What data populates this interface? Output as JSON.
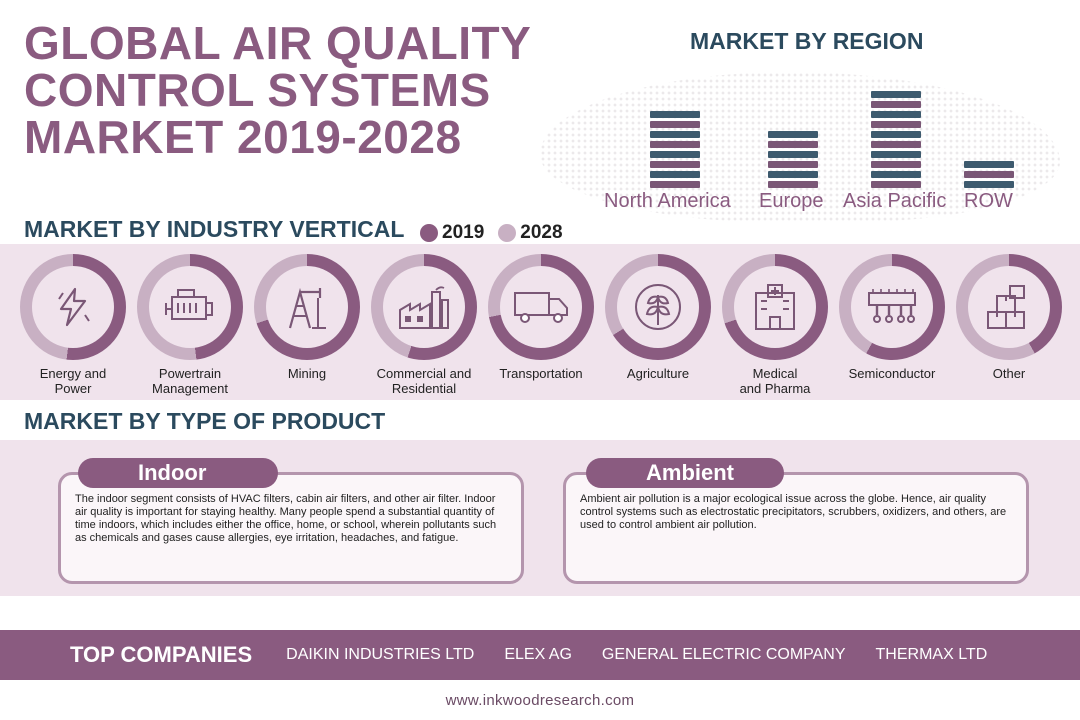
{
  "title": {
    "line1": "GLOBAL AIR QUALITY",
    "line2": "CONTROL SYSTEMS",
    "line3": "MARKET 2019-2028"
  },
  "region": {
    "heading": "MARKET BY REGION",
    "items": [
      {
        "label": "North America",
        "segments": 8
      },
      {
        "label": "Europe",
        "segments": 6
      },
      {
        "label": "Asia Pacific",
        "segments": 10
      },
      {
        "label": "ROW",
        "segments": 3
      }
    ]
  },
  "industry": {
    "heading": "MARKET BY INDUSTRY VERTICAL",
    "legend": [
      {
        "label": "2019",
        "color": "#8a5b80"
      },
      {
        "label": "2028",
        "color": "#c8b0c3"
      }
    ],
    "items": [
      {
        "line1": "Energy and",
        "line2": "Power",
        "icon": "lightning-icon",
        "share": 0.52
      },
      {
        "line1": "Powertrain",
        "line2": "Management",
        "icon": "engine-icon",
        "share": 0.48
      },
      {
        "line1": "Mining",
        "line2": "",
        "icon": "oil-pump-icon",
        "share": 0.7
      },
      {
        "line1": "Commercial and",
        "line2": "Residential",
        "icon": "factory-icon",
        "share": 0.55
      },
      {
        "line1": "Transportation",
        "line2": "",
        "icon": "truck-icon",
        "share": 0.72
      },
      {
        "line1": "Agriculture",
        "line2": "",
        "icon": "plant-icon",
        "share": 0.66
      },
      {
        "line1": "Medical",
        "line2": "and Pharma",
        "icon": "hospital-icon",
        "share": 0.7
      },
      {
        "line1": "Semiconductor",
        "line2": "",
        "icon": "chip-icon",
        "share": 0.58
      },
      {
        "line1": "Other",
        "line2": "",
        "icon": "boxes-icon",
        "share": 0.42
      }
    ]
  },
  "product": {
    "heading": "MARKET BY TYPE OF PRODUCT",
    "indoor": {
      "title": "Indoor",
      "text": "The indoor segment consists of HVAC filters, cabin air filters, and other air filter. Indoor air quality is important for staying healthy. Many people spend a substantial quantity of time indoors, which includes either the office, home, or school, wherein pollutants such as chemicals and gases cause allergies, eye irritation, headaches, and fatigue."
    },
    "ambient": {
      "title": "Ambient",
      "text": "Ambient air pollution is a major ecological issue across the globe. Hence, air quality control systems such as electrostatic precipitators, scrubbers, oxidizers, and others, are used to control ambient air pollution."
    }
  },
  "companies": {
    "heading": "TOP COMPANIES",
    "list": [
      "DAIKIN INDUSTRIES LTD",
      "ELEX AG",
      "GENERAL ELECTRIC COMPANY",
      "THERMAX LTD"
    ]
  },
  "footer": "www.inkwoodresearch.com",
  "colors": {
    "purple": "#8a5b80",
    "light_purple": "#c8b0c3",
    "navy": "#2b4a5e",
    "band": "#f0e3ec"
  }
}
